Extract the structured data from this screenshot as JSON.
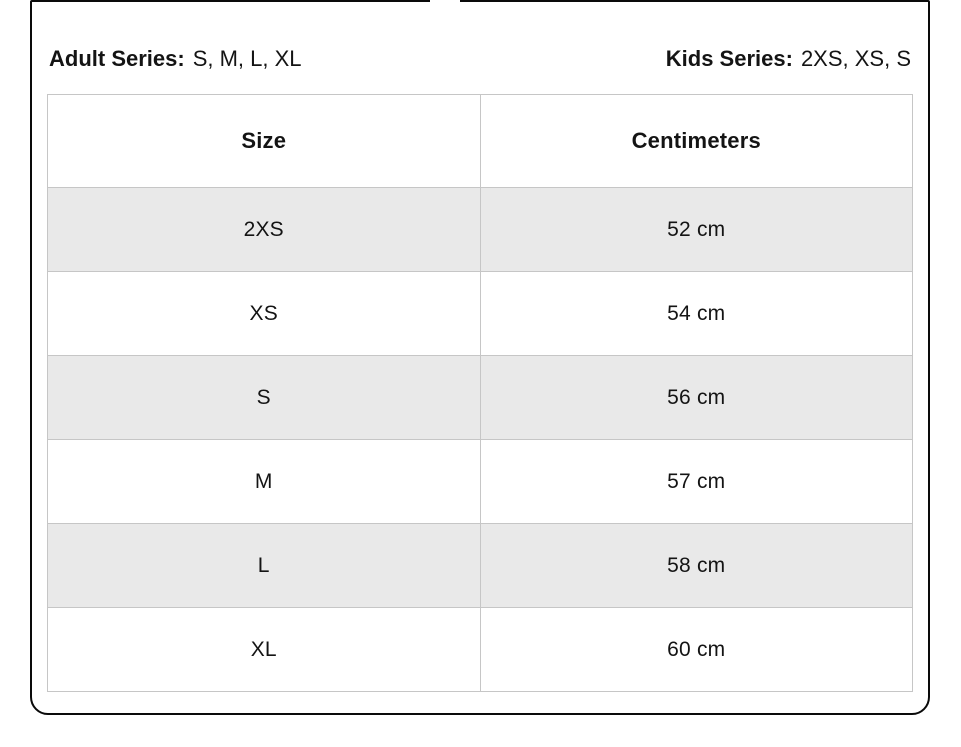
{
  "callout": {
    "adult_series": {
      "label": "Adult Series:",
      "values": "S, M, L, XL"
    },
    "kids_series": {
      "label": "Kids Series:",
      "values": "2XS, XS, S"
    }
  },
  "table": {
    "columns": [
      "Size",
      "Centimeters"
    ],
    "rows": [
      {
        "size": "2XS",
        "cm": "52 cm"
      },
      {
        "size": "XS",
        "cm": "54 cm"
      },
      {
        "size": "S",
        "cm": "56 cm"
      },
      {
        "size": "M",
        "cm": "57 cm"
      },
      {
        "size": "L",
        "cm": "58 cm"
      },
      {
        "size": "XL",
        "cm": "60 cm"
      }
    ]
  },
  "colors": {
    "card_border": "#0a0a0a",
    "table_border": "#b5b5b5",
    "cell_border": "#c6c6c6",
    "row_alt_bg": "#e9e9e9",
    "text": "#141414"
  }
}
